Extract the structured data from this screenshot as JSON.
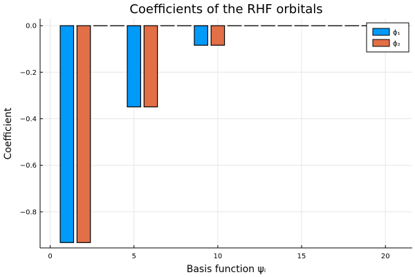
{
  "chart_data": {
    "type": "bar",
    "title": "Coefficients of the RHF orbitals",
    "xlabel": "Basis function ψᵢ",
    "ylabel": "Coefficient",
    "xlim": [
      -0.6,
      21.6
    ],
    "ylim": [
      -0.955,
      0.03
    ],
    "x_ticks": [
      0,
      5,
      10,
      15,
      20
    ],
    "y_ticks": [
      0.0,
      -0.2,
      -0.4,
      -0.6,
      -0.8
    ],
    "y_tick_labels": [
      "0.0",
      "−0.2",
      "−0.4",
      "−0.6",
      "−0.8"
    ],
    "grid": true,
    "legend_position": "top-right",
    "bar_width": 0.8,
    "series": [
      {
        "name": "ϕ₁",
        "color": "#009af9",
        "x": [
          1,
          2,
          3,
          4,
          5,
          6,
          7,
          8,
          9,
          10,
          11,
          12,
          13,
          14,
          15,
          16,
          17,
          18,
          19,
          20
        ],
        "values": [
          -0.932,
          0,
          0,
          0,
          -0.349,
          0,
          0,
          0,
          -0.084,
          0,
          0,
          0,
          0,
          0,
          0,
          0,
          0,
          0,
          0,
          0
        ]
      },
      {
        "name": "ϕ₂",
        "color": "#e26f46",
        "x": [
          2,
          3,
          4,
          5,
          6,
          7,
          8,
          9,
          10,
          11,
          12,
          13,
          14,
          15,
          16,
          17,
          18,
          19,
          20,
          21
        ],
        "values": [
          -0.932,
          0,
          0,
          0,
          -0.349,
          0,
          0,
          0,
          -0.084,
          0,
          0,
          0,
          0,
          0,
          0,
          0,
          0,
          0,
          0,
          0
        ]
      }
    ]
  }
}
